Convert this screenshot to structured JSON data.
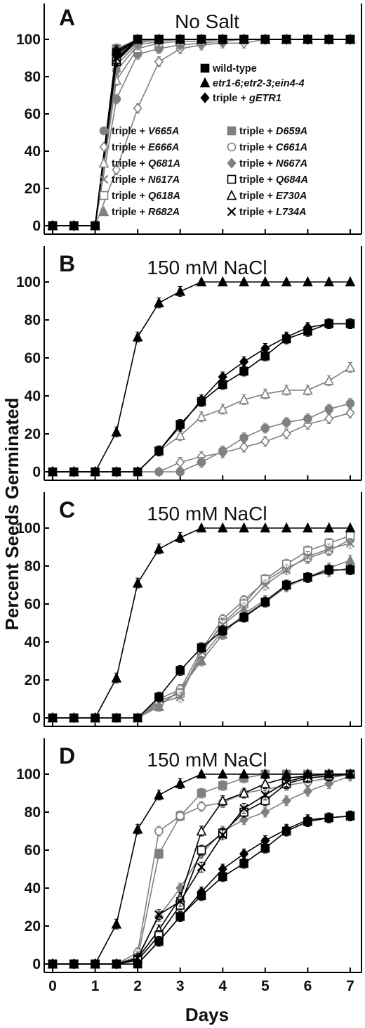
{
  "chart_data": {
    "type": "line",
    "xlabel": "Days",
    "ylabel": "Percent Seeds Germinated",
    "xlim": [
      0,
      7
    ],
    "ylim": [
      0,
      115
    ],
    "xticks": [
      "0",
      "1",
      "2",
      "3",
      "4",
      "5",
      "6",
      "7"
    ],
    "yticks": [
      "0",
      "20",
      "40",
      "60",
      "80",
      "100"
    ],
    "x": [
      0,
      0.5,
      1,
      1.5,
      2,
      2.5,
      3,
      3.5,
      4,
      4.5,
      5,
      5.5,
      6,
      6.5,
      7
    ],
    "series_styles": {
      "wt": {
        "marker": "square",
        "filled": true,
        "color": "#000000"
      },
      "triple": {
        "marker": "triangle",
        "filled": true,
        "color": "#000000"
      },
      "gETR1": {
        "marker": "diamond",
        "filled": true,
        "color": "#000000"
      },
      "V665A": {
        "marker": "circle",
        "filled": true,
        "color": "#808080"
      },
      "E666A": {
        "marker": "diamond",
        "filled": false,
        "color": "#808080"
      },
      "Q681A": {
        "marker": "triangle",
        "filled": false,
        "color": "#808080"
      },
      "N617A": {
        "marker": "x",
        "filled": false,
        "color": "#808080"
      },
      "Q618A": {
        "marker": "square",
        "filled": false,
        "color": "#808080"
      },
      "R682A": {
        "marker": "triangle",
        "filled": true,
        "color": "#808080"
      },
      "D659A": {
        "marker": "square",
        "filled": true,
        "color": "#808080"
      },
      "C661A": {
        "marker": "circle",
        "filled": false,
        "color": "#808080"
      },
      "N667A": {
        "marker": "diamond",
        "filled": true,
        "color": "#808080"
      },
      "Q684A": {
        "marker": "square",
        "filled": false,
        "color": "#000000"
      },
      "E730A": {
        "marker": "triangle",
        "filled": false,
        "color": "#000000"
      },
      "L734A": {
        "marker": "x",
        "filled": false,
        "color": "#000000"
      }
    },
    "legend": {
      "location": "panel A, upper right",
      "top": [
        {
          "key": "wt",
          "text": "wild-type"
        },
        {
          "key": "triple",
          "text": "etr1-6;etr2-3;ein4-4",
          "italic": true
        },
        {
          "key": "gETR1",
          "prefix": "triple + ",
          "text": "gETR1"
        }
      ],
      "left": [
        {
          "key": "V665A",
          "prefix": "triple + ",
          "text": "V665A"
        },
        {
          "key": "E666A",
          "prefix": "triple + ",
          "text": "E666A"
        },
        {
          "key": "Q681A",
          "prefix": "triple + ",
          "text": "Q681A"
        },
        {
          "key": "N617A",
          "prefix": "triple + ",
          "text": "N617A"
        },
        {
          "key": "Q618A",
          "prefix": "triple + ",
          "text": "Q618A"
        },
        {
          "key": "R682A",
          "prefix": "triple + ",
          "text": "R682A"
        }
      ],
      "right": [
        {
          "key": "D659A",
          "prefix": "triple + ",
          "text": "D659A"
        },
        {
          "key": "C661A",
          "prefix": "triple + ",
          "text": "C661A"
        },
        {
          "key": "N667A",
          "prefix": "triple + ",
          "text": "N667A"
        },
        {
          "key": "Q684A",
          "prefix": "triple + ",
          "text": "Q684A"
        },
        {
          "key": "E730A",
          "prefix": "triple + ",
          "text": "E730A"
        },
        {
          "key": "L734A",
          "prefix": "triple + ",
          "text": "L734A"
        }
      ]
    },
    "panels": [
      {
        "label": "A",
        "title": "No Salt",
        "series": [
          {
            "key": "E666A",
            "values": [
              0,
              0,
              0,
              30,
              63,
              88,
              95,
              97,
              98,
              98,
              100,
              100,
              100,
              100,
              100
            ]
          },
          {
            "key": "V665A",
            "values": [
              0,
              0,
              0,
              68,
              92,
              95,
              97,
              98,
              99,
              100,
              100,
              100,
              100,
              100,
              100
            ]
          },
          {
            "key": "Q681A",
            "values": [
              0,
              0,
              0,
              78,
              95,
              98,
              99,
              99,
              100,
              100,
              100,
              100,
              100,
              100,
              100
            ]
          },
          {
            "key": "N667A",
            "values": [
              0,
              0,
              0,
              83,
              97,
              99,
              100,
              100,
              100,
              100,
              100,
              100,
              100,
              100,
              100
            ]
          },
          {
            "key": "N617A",
            "values": [
              0,
              0,
              0,
              86,
              98,
              100,
              100,
              100,
              100,
              100,
              100,
              100,
              100,
              100,
              100
            ]
          },
          {
            "key": "Q618A",
            "values": [
              0,
              0,
              0,
              88,
              99,
              100,
              100,
              100,
              100,
              100,
              100,
              100,
              100,
              100,
              100
            ]
          },
          {
            "key": "C661A",
            "values": [
              0,
              0,
              0,
              90,
              99,
              100,
              100,
              100,
              100,
              100,
              100,
              100,
              100,
              100,
              100
            ]
          },
          {
            "key": "R682A",
            "values": [
              0,
              0,
              0,
              91,
              100,
              100,
              100,
              100,
              100,
              100,
              100,
              100,
              100,
              100,
              100
            ]
          },
          {
            "key": "D659A",
            "values": [
              0,
              0,
              0,
              95,
              100,
              100,
              100,
              100,
              100,
              100,
              100,
              100,
              100,
              100,
              100
            ]
          },
          {
            "key": "Q684A",
            "values": [
              0,
              0,
              0,
              88,
              100,
              100,
              100,
              100,
              100,
              100,
              100,
              100,
              100,
              100,
              100
            ]
          },
          {
            "key": "E730A",
            "values": [
              0,
              0,
              0,
              89,
              100,
              100,
              100,
              100,
              100,
              100,
              100,
              100,
              100,
              100,
              100
            ]
          },
          {
            "key": "L734A",
            "values": [
              0,
              0,
              0,
              90,
              100,
              100,
              100,
              100,
              100,
              100,
              100,
              100,
              100,
              100,
              100
            ]
          },
          {
            "key": "gETR1",
            "values": [
              0,
              0,
              0,
              92,
              100,
              100,
              100,
              100,
              100,
              100,
              100,
              100,
              100,
              100,
              100
            ]
          },
          {
            "key": "wt",
            "values": [
              0,
              0,
              0,
              93,
              100,
              100,
              100,
              100,
              100,
              100,
              100,
              100,
              100,
              100,
              100
            ]
          },
          {
            "key": "triple",
            "values": [
              0,
              0,
              0,
              94,
              100,
              100,
              100,
              100,
              100,
              100,
              100,
              100,
              100,
              100,
              100
            ]
          }
        ]
      },
      {
        "label": "B",
        "title": "150 mM NaCl",
        "series": [
          {
            "key": "E666A",
            "values": [
              0,
              0,
              0,
              0,
              0,
              0,
              5,
              8,
              10,
              13,
              16,
              20,
              25,
              28,
              31
            ]
          },
          {
            "key": "V665A",
            "values": [
              0,
              0,
              0,
              0,
              0,
              0,
              0,
              5,
              11,
              18,
              23,
              26,
              28,
              33,
              36
            ]
          },
          {
            "key": "Q681A",
            "values": [
              0,
              0,
              0,
              0,
              0,
              11,
              19,
              29,
              33,
              38,
              41,
              43,
              43,
              48,
              55
            ]
          },
          {
            "key": "gETR1",
            "values": [
              0,
              0,
              0,
              0,
              0,
              11,
              24,
              38,
              50,
              58,
              65,
              71,
              76,
              78,
              78
            ]
          },
          {
            "key": "wt",
            "values": [
              0,
              0,
              0,
              0,
              0,
              11,
              25,
              37,
              46,
              53,
              61,
              70,
              74,
              78,
              78
            ]
          },
          {
            "key": "triple",
            "values": [
              0,
              0,
              0,
              21,
              71,
              89,
              95,
              100,
              100,
              100,
              100,
              100,
              100,
              100,
              100
            ]
          }
        ]
      },
      {
        "label": "C",
        "title": "150 mM NaCl",
        "series": [
          {
            "key": "R682A",
            "values": [
              0,
              0,
              0,
              0,
              0,
              6,
              15,
              30,
              44,
              55,
              62,
              70,
              74,
              79,
              83
            ]
          },
          {
            "key": "N667A",
            "values": [
              0,
              0,
              0,
              0,
              0,
              7,
              14,
              32,
              46,
              54,
              61,
              69,
              74,
              77,
              79
            ]
          },
          {
            "key": "C661A",
            "values": [
              0,
              0,
              0,
              0,
              0,
              10,
              15,
              36,
              52,
              62,
              72,
              79,
              84,
              88,
              94
            ]
          },
          {
            "key": "Q618A",
            "values": [
              0,
              0,
              0,
              0,
              0,
              9,
              13,
              34,
              50,
              60,
              73,
              81,
              88,
              92,
              96
            ]
          },
          {
            "key": "N617A",
            "values": [
              0,
              0,
              0,
              0,
              0,
              8,
              11,
              35,
              49,
              58,
              70,
              78,
              85,
              89,
              92
            ]
          },
          {
            "key": "wt",
            "values": [
              0,
              0,
              0,
              0,
              0,
              11,
              25,
              37,
              46,
              53,
              61,
              70,
              74,
              78,
              78
            ]
          },
          {
            "key": "triple",
            "values": [
              0,
              0,
              0,
              21,
              71,
              89,
              95,
              100,
              100,
              100,
              100,
              100,
              100,
              100,
              100
            ]
          }
        ]
      },
      {
        "label": "D",
        "title": "150 mM NaCl",
        "series": [
          {
            "key": "D659A",
            "values": [
              0,
              0,
              0,
              0,
              3,
              58,
              78,
              90,
              94,
              98,
              100,
              100,
              100,
              100,
              100
            ]
          },
          {
            "key": "C661A",
            "values": [
              0,
              0,
              0,
              0,
              6,
              70,
              78,
              83,
              85,
              90,
              92,
              94,
              96,
              98,
              100
            ]
          },
          {
            "key": "N667A",
            "values": [
              0,
              0,
              0,
              0,
              4,
              25,
              40,
              58,
              70,
              76,
              80,
              86,
              91,
              95,
              99
            ]
          },
          {
            "key": "E730A",
            "values": [
              0,
              0,
              0,
              0,
              3,
              18,
              35,
              70,
              86,
              90,
              95,
              98,
              99,
              100,
              100
            ]
          },
          {
            "key": "Q684A",
            "values": [
              0,
              0,
              0,
              0,
              2,
              15,
              31,
              60,
              69,
              80,
              86,
              95,
              98,
              99,
              100
            ]
          },
          {
            "key": "L734A",
            "values": [
              0,
              0,
              0,
              0,
              3,
              26,
              33,
              51,
              68,
              82,
              89,
              96,
              99,
              100,
              100
            ]
          },
          {
            "key": "gETR1",
            "values": [
              0,
              0,
              0,
              0,
              0,
              12,
              25,
              38,
              50,
              58,
              65,
              71,
              76,
              77,
              78
            ]
          },
          {
            "key": "wt",
            "values": [
              0,
              0,
              0,
              0,
              0,
              12,
              25,
              36,
              46,
              53,
              61,
              70,
              75,
              77,
              78
            ]
          },
          {
            "key": "triple",
            "values": [
              0,
              0,
              0,
              21,
              71,
              89,
              95,
              100,
              100,
              100,
              100,
              100,
              100,
              100,
              100
            ]
          }
        ]
      }
    ]
  }
}
